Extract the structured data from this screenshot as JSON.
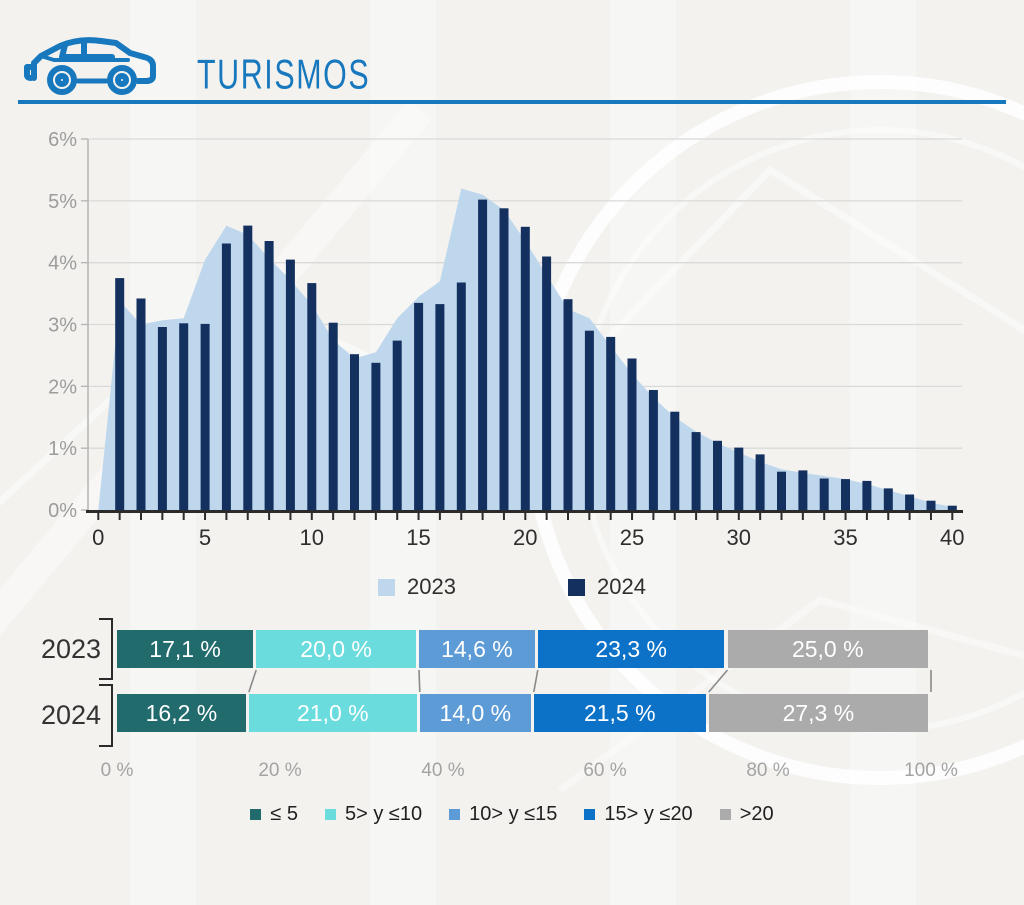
{
  "header": {
    "title": "TURISMOS"
  },
  "colors": {
    "accent_blue": "#1878BE",
    "area_2023": "#BFD7ED",
    "bar_2024": "#13305F",
    "teal": "#216B6D",
    "cyan": "#6ADCDE",
    "medium_blue": "#5C9BD6",
    "bright_blue": "#0B72C7",
    "gray": "#ABABAB",
    "grid": "#d9d9d9",
    "axis_dark": "#2b2b2b",
    "tick_gray": "#9c9c9c",
    "connector_gray": "#8a8a8a"
  },
  "chart_data": [
    {
      "type": "area",
      "title": "",
      "xlabel": "",
      "ylabel": "",
      "x_range": [
        0,
        40
      ],
      "x_tick_labels": [
        "0",
        "5",
        "10",
        "15",
        "20",
        "25",
        "30",
        "35",
        "40"
      ],
      "x_tick_values": [
        0,
        5,
        10,
        15,
        20,
        25,
        30,
        35,
        40
      ],
      "y_tick_labels": [
        "0%",
        "1%",
        "2%",
        "3%",
        "4%",
        "5%",
        "6%"
      ],
      "ylim": [
        0,
        6
      ],
      "grid": true,
      "legend_position": "bottom",
      "series": [
        {
          "name": "2023",
          "type": "area",
          "color": "#BFD7ED",
          "x_start": 0,
          "values": [
            0,
            3.38,
            3.0,
            3.07,
            3.1,
            4.05,
            4.6,
            4.45,
            4.07,
            3.72,
            3.32,
            2.75,
            2.45,
            2.55,
            3.1,
            3.45,
            3.7,
            5.2,
            5.1,
            4.85,
            4.35,
            3.8,
            3.25,
            3.1,
            2.65,
            2.2,
            1.82,
            1.5,
            1.27,
            1.08,
            0.93,
            0.78,
            0.66,
            0.6,
            0.55,
            0.5,
            0.42,
            0.32,
            0.22,
            0.12,
            0.05
          ]
        },
        {
          "name": "2024",
          "type": "bar",
          "color": "#13305F",
          "x_start": 1,
          "values": [
            3.75,
            3.42,
            2.96,
            3.02,
            3.01,
            4.31,
            4.6,
            4.35,
            4.05,
            3.67,
            3.03,
            2.52,
            2.38,
            2.74,
            3.35,
            3.33,
            3.68,
            5.02,
            4.88,
            4.58,
            4.1,
            3.41,
            2.9,
            2.8,
            2.45,
            1.94,
            1.59,
            1.26,
            1.12,
            1.01,
            0.9,
            0.62,
            0.64,
            0.51,
            0.5,
            0.47,
            0.35,
            0.25,
            0.15,
            0.07
          ]
        }
      ]
    },
    {
      "type": "bar",
      "subtype": "stacked-horizontal",
      "categories": [
        "≤ 5",
        "5> y ≤10",
        "10> y ≤15",
        "15> y ≤20",
        ">20"
      ],
      "colors": [
        "#216B6D",
        "#6ADCDE",
        "#5C9BD6",
        "#0B72C7",
        "#ABABAB"
      ],
      "rows": [
        {
          "label": "2023",
          "values": [
            17.1,
            20.0,
            14.6,
            23.3,
            25.0
          ],
          "display": [
            "17,1 %",
            "20,0 %",
            "14,6 %",
            "23,3 %",
            "25,0 %"
          ]
        },
        {
          "label": "2024",
          "values": [
            16.2,
            21.0,
            14.0,
            21.5,
            27.3
          ],
          "display": [
            "16,2 %",
            "21,0 %",
            "14,0 %",
            "21,5 %",
            "27,3 %"
          ]
        }
      ],
      "x_ticks": [
        "0 %",
        "20 %",
        "40 %",
        "60 %",
        "80 %",
        "100 %"
      ],
      "x_tick_values": [
        0,
        20,
        40,
        60,
        80,
        100
      ],
      "xlim": [
        0,
        100
      ],
      "legend_position": "bottom"
    }
  ],
  "mid_legend": [
    {
      "label": "2023",
      "color": "#BFD7ED"
    },
    {
      "label": "2024",
      "color": "#13305F"
    }
  ],
  "bottom_legend": [
    {
      "label": "≤ 5",
      "color": "#216B6D"
    },
    {
      "label": "5> y ≤10",
      "color": "#6ADCDE"
    },
    {
      "label": "10> y ≤15",
      "color": "#5C9BD6"
    },
    {
      "label": "15> y ≤20",
      "color": "#0B72C7"
    },
    {
      "label": ">20",
      "color": "#ABABAB"
    }
  ]
}
